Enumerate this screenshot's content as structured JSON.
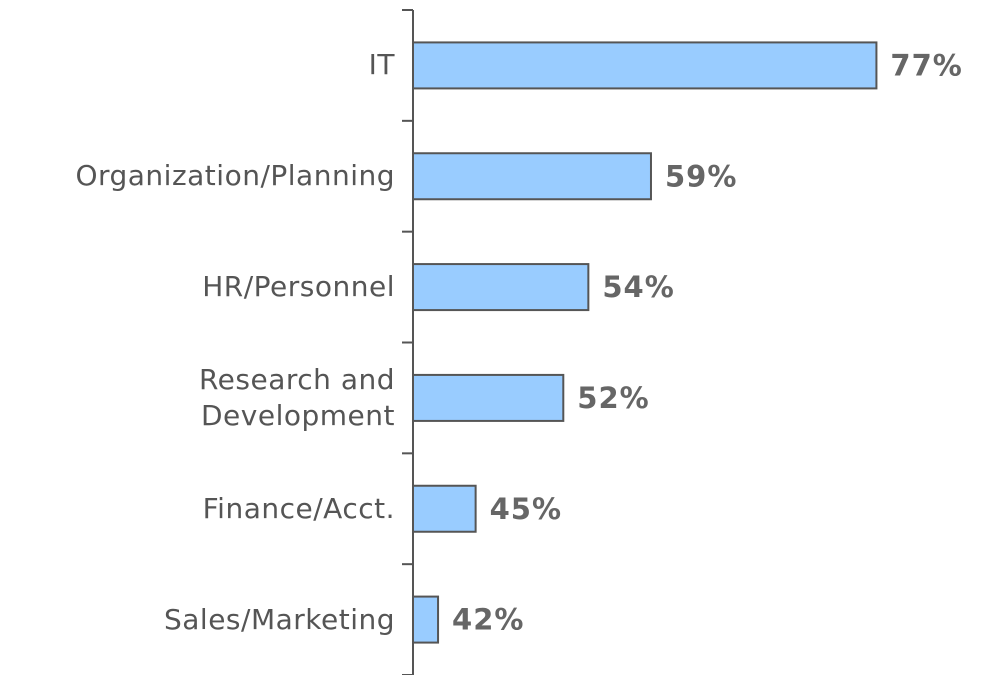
{
  "chart_data": {
    "type": "barh",
    "categories": [
      "IT",
      "Organization/Planning",
      "HR/Personnel",
      "Research and Development",
      "Finance/Acct.",
      "Sales/Marketing"
    ],
    "values": [
      77,
      59,
      54,
      52,
      45,
      42
    ],
    "value_labels": [
      "77%",
      "59%",
      "54%",
      "52%",
      "45%",
      "42%"
    ],
    "color": "#99ccff",
    "xlim": [
      40,
      80
    ]
  }
}
